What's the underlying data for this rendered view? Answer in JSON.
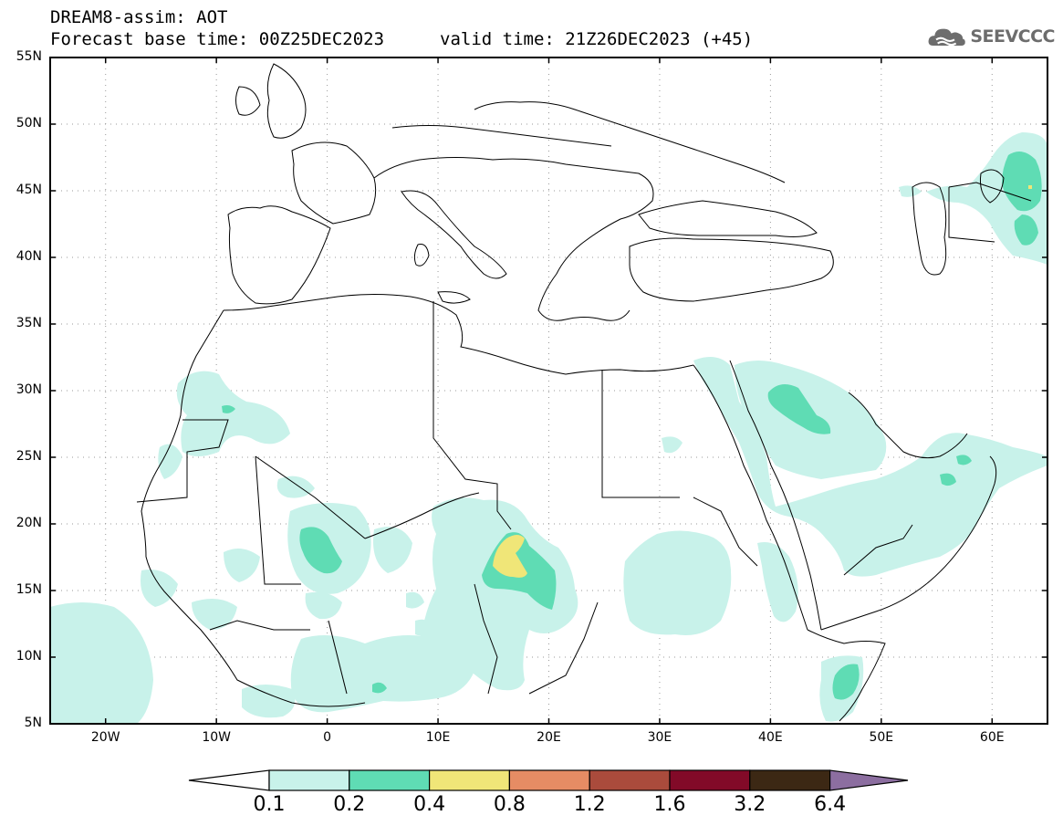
{
  "title": {
    "line1": "DREAM8-assim: AOT",
    "line2": "Forecast base time: 00Z25DEC2023",
    "valid": "valid time: 21Z26DEC2023 (+45)"
  },
  "logo": {
    "text": "SEEVCCC",
    "icon": "cloud-icon"
  },
  "map": {
    "lat_labels": [
      "55N",
      "50N",
      "45N",
      "40N",
      "35N",
      "30N",
      "25N",
      "20N",
      "15N",
      "10N",
      "5N"
    ],
    "lon_labels": [
      "20W",
      "10W",
      "0",
      "10E",
      "20E",
      "30E",
      "40E",
      "50E",
      "60E"
    ],
    "lat_range": [
      5,
      55
    ],
    "lon_range": [
      -25,
      65
    ],
    "grid": true,
    "grid_style": "dotted"
  },
  "colorbar": {
    "levels": [
      "0.1",
      "0.2",
      "0.4",
      "0.8",
      "1.2",
      "1.6",
      "3.2",
      "6.4"
    ],
    "colors": [
      "#c8f2ea",
      "#5fdcb4",
      "#f0e678",
      "#e68c64",
      "#aa4b3c",
      "#820a28",
      "#3c2814",
      "#8c6ea0"
    ],
    "extend": "both"
  }
}
